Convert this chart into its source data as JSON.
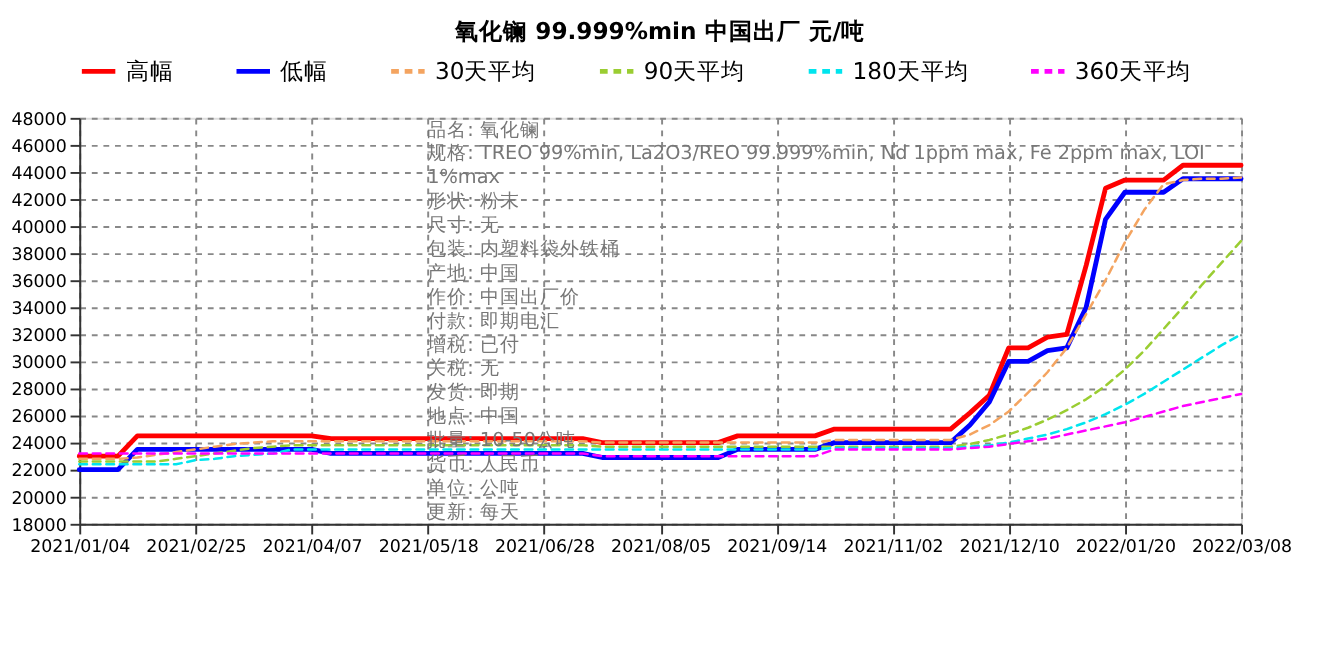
{
  "chart_data": {
    "type": "line",
    "title": "氧化镧 99.999%min 中国出厂 元/吨",
    "categories": [
      "2021/01/04",
      null,
      null,
      null,
      null,
      null,
      "2021/02/25",
      null,
      null,
      null,
      null,
      null,
      "2021/04/07",
      null,
      null,
      null,
      null,
      null,
      "2021/05/18",
      null,
      null,
      null,
      null,
      null,
      "2021/06/28",
      null,
      null,
      null,
      null,
      null,
      "2021/08/05",
      null,
      null,
      null,
      null,
      null,
      "2021/09/14",
      null,
      null,
      null,
      null,
      null,
      "2021/11/02",
      null,
      null,
      null,
      null,
      null,
      "2021/12/10",
      null,
      null,
      null,
      null,
      null,
      "2022/01/20",
      null,
      null,
      null,
      null,
      null,
      "2022/03/08"
    ],
    "series": [
      {
        "name": "高幅",
        "color": "#ff0000",
        "line_style": "solid",
        "values": [
          23000,
          23000,
          23000,
          24500,
          24500,
          24500,
          24500,
          24500,
          24500,
          24500,
          24500,
          24500,
          24500,
          24300,
          24300,
          24300,
          24300,
          24300,
          24300,
          24300,
          24300,
          24300,
          24300,
          24300,
          24300,
          24300,
          24300,
          24000,
          24000,
          24000,
          24000,
          24000,
          24000,
          24000,
          24500,
          24500,
          24500,
          24500,
          24500,
          25000,
          25000,
          25000,
          25000,
          25000,
          25000,
          25000,
          26200,
          27500,
          31000,
          31000,
          31800,
          32000,
          37100,
          42800,
          43400,
          43400,
          43400,
          44500,
          44500,
          44500,
          44500
        ]
      },
      {
        "name": "低幅",
        "color": "#0000ff",
        "line_style": "solid",
        "values": [
          22000,
          22000,
          22000,
          23500,
          23500,
          23500,
          23500,
          23500,
          23500,
          23500,
          23500,
          23500,
          23500,
          23200,
          23200,
          23200,
          23200,
          23200,
          23200,
          23200,
          23200,
          23200,
          23200,
          23200,
          23200,
          23200,
          23200,
          22900,
          22900,
          22900,
          22900,
          22900,
          22900,
          22900,
          23500,
          23500,
          23500,
          23500,
          23500,
          24000,
          24000,
          24000,
          24000,
          24000,
          24000,
          24000,
          25300,
          27000,
          30000,
          30000,
          30800,
          31000,
          34000,
          40500,
          42500,
          42500,
          42500,
          43500,
          43500,
          43500,
          43500
        ]
      },
      {
        "name": "30天平均",
        "color": "#f4a460",
        "line_style": "dashed",
        "values": [
          22800,
          22800,
          22800,
          22900,
          23100,
          23300,
          23500,
          23700,
          23900,
          24000,
          24100,
          24100,
          24100,
          24100,
          24100,
          24100,
          24100,
          24100,
          24100,
          24100,
          24100,
          24100,
          24100,
          24100,
          24100,
          24100,
          24100,
          24000,
          24000,
          24000,
          24000,
          24000,
          24000,
          24000,
          24000,
          24000,
          24000,
          24000,
          24000,
          24200,
          24200,
          24200,
          24200,
          24200,
          24200,
          24200,
          24600,
          25300,
          26300,
          27700,
          29200,
          31000,
          33500,
          36000,
          38800,
          41200,
          43100,
          43400,
          43500,
          43500,
          43600
        ]
      },
      {
        "name": "90天平均",
        "color": "#9acd32",
        "line_style": "dashed",
        "values": [
          22600,
          22600,
          22600,
          22600,
          22600,
          22800,
          23000,
          23200,
          23400,
          23600,
          23700,
          23800,
          23800,
          23800,
          23800,
          23800,
          23800,
          23800,
          23800,
          23800,
          23800,
          23800,
          23800,
          23800,
          23800,
          23800,
          23800,
          23700,
          23700,
          23700,
          23700,
          23700,
          23700,
          23700,
          23700,
          23700,
          23700,
          23700,
          23700,
          23700,
          23700,
          23700,
          23700,
          23700,
          23700,
          23700,
          23900,
          24200,
          24600,
          25100,
          25700,
          26400,
          27200,
          28200,
          29400,
          30800,
          32400,
          34000,
          35700,
          37300,
          38900
        ]
      },
      {
        "name": "180天平均",
        "color": "#00e5ee",
        "line_style": "dashed",
        "values": [
          22400,
          22400,
          22400,
          22400,
          22400,
          22400,
          22700,
          22800,
          23000,
          23100,
          23200,
          23500,
          23500,
          23500,
          23500,
          23500,
          23500,
          23500,
          23500,
          23500,
          23500,
          23500,
          23500,
          23500,
          23500,
          23500,
          23500,
          23500,
          23500,
          23500,
          23500,
          23500,
          23500,
          23500,
          23500,
          23500,
          23500,
          23500,
          23500,
          23600,
          23600,
          23600,
          23600,
          23600,
          23600,
          23600,
          23700,
          23800,
          24000,
          24300,
          24600,
          25000,
          25500,
          26100,
          26800,
          27600,
          28500,
          29400,
          30300,
          31200,
          32000
        ]
      },
      {
        "name": "360天平均",
        "color": "#ff00ff",
        "line_style": "dashed",
        "values": [
          23200,
          23200,
          23200,
          23200,
          23200,
          23200,
          23200,
          23200,
          23200,
          23200,
          23200,
          23200,
          23200,
          23200,
          23200,
          23200,
          23200,
          23200,
          23200,
          23200,
          23200,
          23200,
          23200,
          23200,
          23200,
          23200,
          23200,
          23000,
          23000,
          23000,
          23000,
          23000,
          23000,
          23000,
          23000,
          23000,
          23000,
          23000,
          23000,
          23500,
          23500,
          23500,
          23500,
          23500,
          23500,
          23500,
          23600,
          23700,
          23900,
          24100,
          24300,
          24600,
          24900,
          25200,
          25500,
          25900,
          26300,
          26700,
          27000,
          27300,
          27600
        ]
      }
    ],
    "ylim": [
      18000,
      48000
    ],
    "yticks": [
      18000,
      20000,
      22000,
      24000,
      26000,
      28000,
      30000,
      32000,
      34000,
      36000,
      38000,
      40000,
      42000,
      44000,
      46000,
      48000
    ],
    "grid": true,
    "legend": "top",
    "annotations": [
      "品名:  氧化镧",
      "规格:  TREO 99%min, La2O3/REO 99.999%min, Nd 1ppm max, Fe 2ppm max, LOI",
      "1%max",
      "形状:  粉末",
      "尺寸:  无",
      "包装:  内塑料袋外铁桶",
      "产地:  中国",
      "作价:  中国出厂价",
      "付款:  即期电汇",
      "增税:  已付",
      "关税:  无",
      "发货:  即期",
      "地点:  中国",
      "批量:  10-50公吨",
      "货币:  人民币",
      "单位:  公吨",
      "更新:  每天"
    ]
  }
}
